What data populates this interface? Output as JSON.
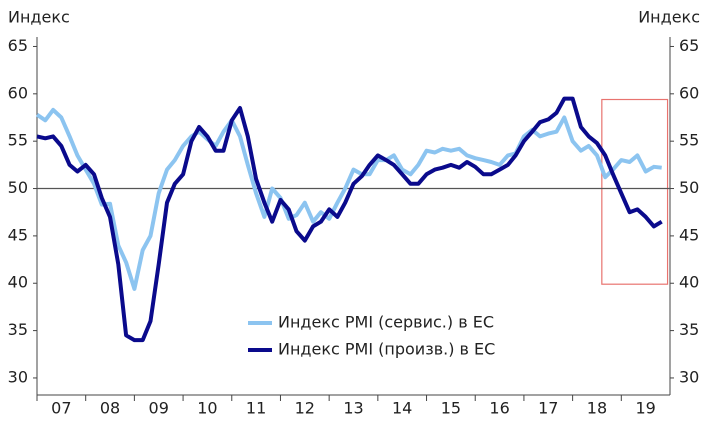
{
  "chart_data": {
    "type": "line",
    "y_label": "Индекс",
    "y2_label": "Индекс",
    "x": [
      2007,
      2007.17,
      2007.33,
      2007.5,
      2007.67,
      2007.83,
      2008,
      2008.17,
      2008.33,
      2008.5,
      2008.67,
      2008.83,
      2009,
      2009.17,
      2009.33,
      2009.5,
      2009.67,
      2009.83,
      2010,
      2010.17,
      2010.33,
      2010.5,
      2010.67,
      2010.83,
      2011,
      2011.17,
      2011.33,
      2011.5,
      2011.67,
      2011.83,
      2012,
      2012.17,
      2012.33,
      2012.5,
      2012.67,
      2012.83,
      2013,
      2013.17,
      2013.33,
      2013.5,
      2013.67,
      2013.83,
      2014,
      2014.17,
      2014.33,
      2014.5,
      2014.67,
      2014.83,
      2015,
      2015.17,
      2015.33,
      2015.5,
      2015.67,
      2015.83,
      2016,
      2016.17,
      2016.33,
      2016.5,
      2016.67,
      2016.83,
      2017,
      2017.17,
      2017.33,
      2017.5,
      2017.67,
      2017.83,
      2018,
      2018.17,
      2018.33,
      2018.5,
      2018.67,
      2018.83,
      2019,
      2019.17,
      2019.33,
      2019.5,
      2019.67,
      2019.83
    ],
    "series": [
      {
        "name": "Индекс PMI (сервис.) в ЕС",
        "color": "#8cc4f0",
        "values": [
          57.8,
          57.2,
          58.3,
          57.5,
          55.5,
          53.5,
          52,
          50.5,
          48.3,
          48.4,
          44,
          42.2,
          39.4,
          43.5,
          45,
          49.5,
          52,
          53,
          54.5,
          55.5,
          56,
          55.2,
          54.5,
          56,
          57.2,
          55.5,
          52.5,
          49.5,
          47,
          50,
          49,
          46.8,
          47.2,
          48.5,
          46.5,
          47.5,
          46.8,
          48.5,
          50,
          52,
          51.5,
          51.5,
          53,
          53,
          53.5,
          52,
          51.5,
          52.5,
          54,
          53.8,
          54.2,
          54,
          54.2,
          53.5,
          53.2,
          53,
          52.8,
          52.5,
          53.5,
          53.7,
          55.5,
          56.2,
          55.5,
          55.8,
          56,
          57.5,
          55,
          54,
          54.5,
          53.5,
          51.2,
          52,
          53,
          52.8,
          53.5,
          51.8,
          52.3,
          52.2
        ]
      },
      {
        "name": "Индекс PMI (произв.) в ЕС",
        "color": "#0a0a8c",
        "values": [
          55.5,
          55.3,
          55.5,
          54.5,
          52.5,
          51.8,
          52.5,
          51.5,
          49,
          47,
          42,
          34.5,
          34,
          34,
          36,
          42,
          48.5,
          50.5,
          51.5,
          55,
          56.5,
          55.5,
          54,
          54,
          57.2,
          58.5,
          55.5,
          51,
          48.5,
          46.5,
          48.8,
          47.8,
          45.5,
          44.5,
          46,
          46.5,
          47.8,
          47,
          48.5,
          50.5,
          51.3,
          52.5,
          53.5,
          53,
          52.5,
          51.5,
          50.5,
          50.5,
          51.5,
          52,
          52.2,
          52.5,
          52.2,
          52.8,
          52.3,
          51.5,
          51.5,
          52,
          52.5,
          53.5,
          55,
          56,
          57,
          57.3,
          58,
          59.5,
          59.5,
          56.5,
          55.5,
          54.8,
          53.5,
          51.5,
          49.5,
          47.5,
          47.8,
          47,
          46,
          46.5
        ]
      }
    ],
    "xlim": [
      2007,
      2020
    ],
    "xticks": [
      {
        "value": 2007.5,
        "label": "07"
      },
      {
        "value": 2008.5,
        "label": "08"
      },
      {
        "value": 2009.5,
        "label": "09"
      },
      {
        "value": 2010.5,
        "label": "10"
      },
      {
        "value": 2011.5,
        "label": "11"
      },
      {
        "value": 2012.5,
        "label": "12"
      },
      {
        "value": 2013.5,
        "label": "13"
      },
      {
        "value": 2014.5,
        "label": "14"
      },
      {
        "value": 2015.5,
        "label": "15"
      },
      {
        "value": 2016.5,
        "label": "16"
      },
      {
        "value": 2017.5,
        "label": "17"
      },
      {
        "value": 2018.5,
        "label": "18"
      },
      {
        "value": 2019.5,
        "label": "19"
      }
    ],
    "ylim": [
      28.2,
      66
    ],
    "yticks": [
      30,
      35,
      40,
      45,
      50,
      55,
      60,
      65
    ],
    "y2lim": [
      28.2,
      66
    ],
    "y2ticks": [
      30,
      35,
      40,
      45,
      50,
      55,
      60,
      65
    ],
    "reference_line": 50,
    "highlight": {
      "x": [
        2018.6,
        2019.95
      ],
      "y": [
        39.9,
        59.4
      ],
      "color": "#e8736f"
    },
    "legend": "lower center",
    "grid": false
  }
}
